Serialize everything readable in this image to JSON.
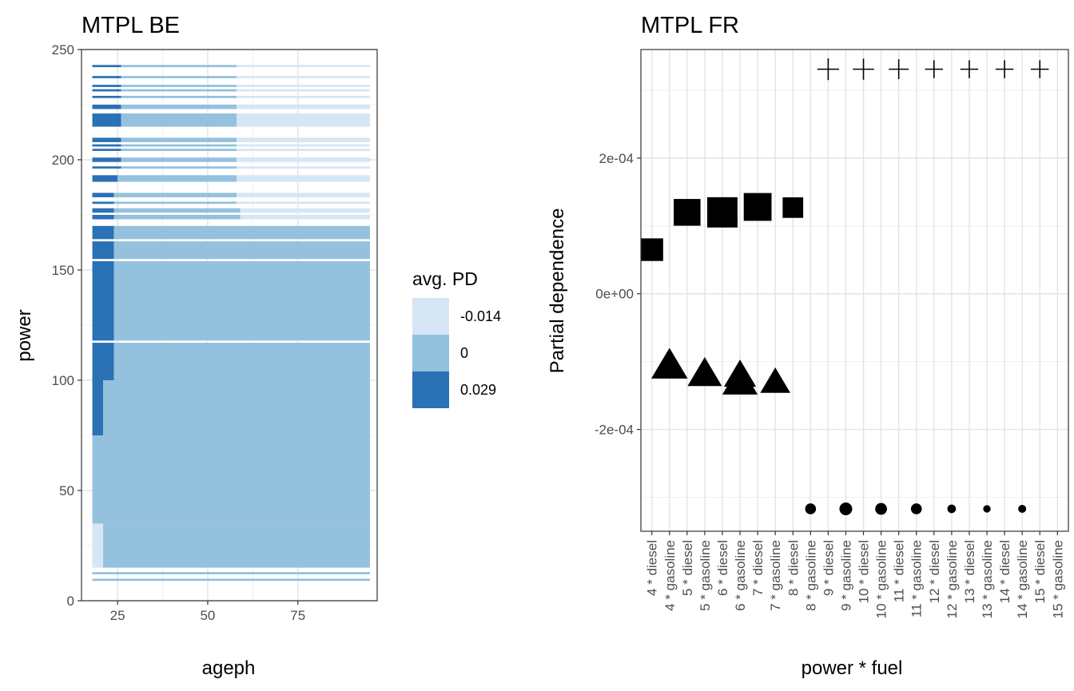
{
  "chart_data": [
    {
      "type": "heatmap",
      "title": "MTPL BE",
      "xlabel": "ageph",
      "ylabel": "power",
      "xlim": [
        15,
        97
      ],
      "ylim": [
        0,
        250
      ],
      "xticks": [
        25,
        50,
        75
      ],
      "yticks": [
        0,
        50,
        100,
        150,
        200,
        250
      ],
      "legend": {
        "title": "avg. PD",
        "position": "right",
        "entries": [
          {
            "label": "-0.014",
            "value": -0.014,
            "color": "#d6e6f4"
          },
          {
            "label": "0",
            "value": 0,
            "color": "#94c1de"
          },
          {
            "label": "0.029",
            "value": 0.029,
            "color": "#2b71b5"
          }
        ]
      },
      "grid": true,
      "bands": [
        {
          "y0": 9,
          "y1": 10,
          "segments": [
            {
              "x0": 18,
              "x1": 95,
              "v": 0
            }
          ]
        },
        {
          "y0": 12,
          "y1": 13,
          "segments": [
            {
              "x0": 18,
              "x1": 95,
              "v": 0
            }
          ]
        },
        {
          "y0": 15,
          "y1": 35,
          "segments": [
            {
              "x0": 18,
              "x1": 21,
              "v": -0.014
            },
            {
              "x0": 21,
              "x1": 95,
              "v": 0
            }
          ]
        },
        {
          "y0": 35,
          "y1": 75,
          "segments": [
            {
              "x0": 18,
              "x1": 95,
              "v": 0
            }
          ]
        },
        {
          "y0": 75,
          "y1": 100,
          "segments": [
            {
              "x0": 18,
              "x1": 21,
              "v": 0.029
            },
            {
              "x0": 21,
              "x1": 95,
              "v": 0
            }
          ]
        },
        {
          "y0": 100,
          "y1": 117,
          "segments": [
            {
              "x0": 18,
              "x1": 24,
              "v": 0.029
            },
            {
              "x0": 24,
              "x1": 95,
              "v": 0
            }
          ]
        },
        {
          "y0": 118,
          "y1": 154,
          "segments": [
            {
              "x0": 18,
              "x1": 24,
              "v": 0.029
            },
            {
              "x0": 24,
              "x1": 95,
              "v": 0
            }
          ]
        },
        {
          "y0": 155,
          "y1": 163,
          "segments": [
            {
              "x0": 18,
              "x1": 24,
              "v": 0.029
            },
            {
              "x0": 24,
              "x1": 95,
              "v": 0
            }
          ]
        },
        {
          "y0": 164,
          "y1": 170,
          "segments": [
            {
              "x0": 18,
              "x1": 24,
              "v": 0.029
            },
            {
              "x0": 24,
              "x1": 95,
              "v": 0
            }
          ]
        },
        {
          "y0": 173,
          "y1": 175,
          "segments": [
            {
              "x0": 18,
              "x1": 24,
              "v": 0.029
            },
            {
              "x0": 24,
              "x1": 59,
              "v": 0
            },
            {
              "x0": 59,
              "x1": 95,
              "v": -0.014
            }
          ]
        },
        {
          "y0": 176,
          "y1": 178,
          "segments": [
            {
              "x0": 18,
              "x1": 24,
              "v": 0.029
            },
            {
              "x0": 24,
              "x1": 59,
              "v": 0
            },
            {
              "x0": 59,
              "x1": 95,
              "v": -0.014
            }
          ]
        },
        {
          "y0": 180,
          "y1": 181,
          "segments": [
            {
              "x0": 18,
              "x1": 24,
              "v": 0.029
            },
            {
              "x0": 24,
              "x1": 58,
              "v": 0
            },
            {
              "x0": 58,
              "x1": 95,
              "v": -0.014
            }
          ]
        },
        {
          "y0": 183,
          "y1": 185,
          "segments": [
            {
              "x0": 18,
              "x1": 24,
              "v": 0.029
            },
            {
              "x0": 24,
              "x1": 58,
              "v": 0
            },
            {
              "x0": 58,
              "x1": 95,
              "v": -0.014
            }
          ]
        },
        {
          "y0": 190,
          "y1": 193,
          "segments": [
            {
              "x0": 18,
              "x1": 25,
              "v": 0.029
            },
            {
              "x0": 25,
              "x1": 58,
              "v": 0
            },
            {
              "x0": 58,
              "x1": 95,
              "v": -0.014
            }
          ]
        },
        {
          "y0": 196,
          "y1": 197,
          "segments": [
            {
              "x0": 18,
              "x1": 26,
              "v": 0.029
            },
            {
              "x0": 26,
              "x1": 58,
              "v": 0
            },
            {
              "x0": 58,
              "x1": 95,
              "v": -0.014
            }
          ]
        },
        {
          "y0": 199,
          "y1": 201,
          "segments": [
            {
              "x0": 18,
              "x1": 26,
              "v": 0.029
            },
            {
              "x0": 26,
              "x1": 58,
              "v": 0
            },
            {
              "x0": 58,
              "x1": 95,
              "v": -0.014
            }
          ]
        },
        {
          "y0": 204,
          "y1": 205,
          "segments": [
            {
              "x0": 18,
              "x1": 26,
              "v": 0.029
            },
            {
              "x0": 26,
              "x1": 58,
              "v": 0
            },
            {
              "x0": 58,
              "x1": 95,
              "v": -0.014
            }
          ]
        },
        {
          "y0": 206,
          "y1": 207,
          "segments": [
            {
              "x0": 18,
              "x1": 26,
              "v": 0.029
            },
            {
              "x0": 26,
              "x1": 58,
              "v": 0
            },
            {
              "x0": 58,
              "x1": 95,
              "v": -0.014
            }
          ]
        },
        {
          "y0": 208,
          "y1": 210,
          "segments": [
            {
              "x0": 18,
              "x1": 26,
              "v": 0.029
            },
            {
              "x0": 26,
              "x1": 58,
              "v": 0
            },
            {
              "x0": 58,
              "x1": 95,
              "v": -0.014
            }
          ]
        },
        {
          "y0": 215,
          "y1": 221,
          "segments": [
            {
              "x0": 18,
              "x1": 26,
              "v": 0.029
            },
            {
              "x0": 26,
              "x1": 58,
              "v": 0
            },
            {
              "x0": 58,
              "x1": 95,
              "v": -0.014
            }
          ]
        },
        {
          "y0": 223,
          "y1": 225,
          "segments": [
            {
              "x0": 18,
              "x1": 26,
              "v": 0.029
            },
            {
              "x0": 26,
              "x1": 58,
              "v": 0
            },
            {
              "x0": 58,
              "x1": 95,
              "v": -0.014
            }
          ]
        },
        {
          "y0": 228,
          "y1": 229,
          "segments": [
            {
              "x0": 18,
              "x1": 26,
              "v": 0.029
            },
            {
              "x0": 26,
              "x1": 58,
              "v": 0
            },
            {
              "x0": 58,
              "x1": 95,
              "v": -0.014
            }
          ]
        },
        {
          "y0": 231,
          "y1": 232,
          "segments": [
            {
              "x0": 18,
              "x1": 26,
              "v": 0.029
            },
            {
              "x0": 26,
              "x1": 58,
              "v": 0
            },
            {
              "x0": 58,
              "x1": 95,
              "v": -0.014
            }
          ]
        },
        {
          "y0": 233,
          "y1": 234,
          "segments": [
            {
              "x0": 18,
              "x1": 26,
              "v": 0.029
            },
            {
              "x0": 26,
              "x1": 58,
              "v": 0
            },
            {
              "x0": 58,
              "x1": 95,
              "v": -0.014
            }
          ]
        },
        {
          "y0": 237,
          "y1": 238,
          "segments": [
            {
              "x0": 18,
              "x1": 26,
              "v": 0.029
            },
            {
              "x0": 26,
              "x1": 58,
              "v": 0
            },
            {
              "x0": 58,
              "x1": 95,
              "v": -0.014
            }
          ]
        },
        {
          "y0": 242,
          "y1": 243,
          "segments": [
            {
              "x0": 18,
              "x1": 26,
              "v": 0.029
            },
            {
              "x0": 26,
              "x1": 58,
              "v": 0
            },
            {
              "x0": 58,
              "x1": 95,
              "v": -0.014
            }
          ]
        }
      ]
    },
    {
      "type": "scatter",
      "title": "MTPL FR",
      "xlabel": "power * fuel",
      "ylabel": "Partial dependence",
      "ylim": [
        -0.00035,
        0.00036
      ],
      "yticks": [
        -0.0002,
        0,
        0.0002
      ],
      "yticklabels": [
        "-2e-04",
        "0e+00",
        "2e-04"
      ],
      "categories": [
        "4 * diesel",
        "4 * gasoline",
        "5 * diesel",
        "5 * gasoline",
        "6 * diesel",
        "6 * gasoline",
        "7 * diesel",
        "7 * gasoline",
        "8 * diesel",
        "8 * gasoline",
        "9 * diesel",
        "9 * gasoline",
        "10 * diesel",
        "10 * gasoline",
        "11 * diesel",
        "11 * gasoline",
        "12 * diesel",
        "12 * gasoline",
        "13 * diesel",
        "13 * gasoline",
        "14 * diesel",
        "14 * gasoline",
        "15 * diesel",
        "15 * gasoline"
      ],
      "grid": true,
      "points": [
        {
          "x": "4 * diesel",
          "y": 6.5e-05,
          "shape": "square",
          "size": 0.55
        },
        {
          "x": "4 * gasoline",
          "y": -0.000108,
          "shape": "triangle",
          "size": 1.0
        },
        {
          "x": "5 * diesel",
          "y": 0.00012,
          "shape": "square",
          "size": 0.75
        },
        {
          "x": "5 * gasoline",
          "y": -0.00012,
          "shape": "triangle",
          "size": 0.9
        },
        {
          "x": "6 * diesel",
          "y": 0.00012,
          "shape": "square",
          "size": 0.92
        },
        {
          "x": "6 * gasoline",
          "y": -0.000122,
          "shape": "triangle",
          "size": 0.8
        },
        {
          "x": "6 * gasoline",
          "y": -0.000132,
          "shape": "triangle",
          "size": 0.95
        },
        {
          "x": "7 * diesel",
          "y": 0.000128,
          "shape": "square",
          "size": 0.8
        },
        {
          "x": "7 * gasoline",
          "y": -0.000132,
          "shape": "triangle",
          "size": 0.7
        },
        {
          "x": "8 * diesel",
          "y": 0.000127,
          "shape": "square",
          "size": 0.45
        },
        {
          "x": "8 * gasoline",
          "y": -0.000317,
          "shape": "circle",
          "size": 0.4
        },
        {
          "x": "9 * diesel",
          "y": 0.000331,
          "shape": "cross",
          "size": 0.95
        },
        {
          "x": "9 * gasoline",
          "y": -0.000317,
          "shape": "circle",
          "size": 0.5
        },
        {
          "x": "10 * diesel",
          "y": 0.000331,
          "shape": "cross",
          "size": 0.9
        },
        {
          "x": "10 * gasoline",
          "y": -0.000317,
          "shape": "circle",
          "size": 0.45
        },
        {
          "x": "11 * diesel",
          "y": 0.000331,
          "shape": "cross",
          "size": 0.8
        },
        {
          "x": "11 * gasoline",
          "y": -0.000317,
          "shape": "circle",
          "size": 0.4
        },
        {
          "x": "12 * diesel",
          "y": 0.000331,
          "shape": "cross",
          "size": 0.65
        },
        {
          "x": "12 * gasoline",
          "y": -0.000317,
          "shape": "circle",
          "size": 0.28
        },
        {
          "x": "13 * diesel",
          "y": 0.000331,
          "shape": "cross",
          "size": 0.65
        },
        {
          "x": "13 * gasoline",
          "y": -0.000317,
          "shape": "circle",
          "size": 0.22
        },
        {
          "x": "14 * diesel",
          "y": 0.000331,
          "shape": "cross",
          "size": 0.65
        },
        {
          "x": "14 * gasoline",
          "y": -0.000317,
          "shape": "circle",
          "size": 0.25
        },
        {
          "x": "15 * diesel",
          "y": 0.000331,
          "shape": "cross",
          "size": 0.65
        }
      ]
    }
  ]
}
